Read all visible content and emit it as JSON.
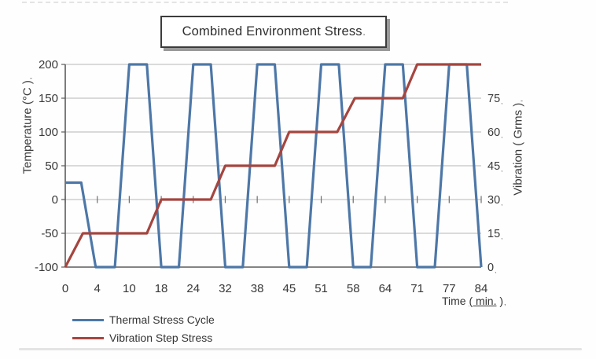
{
  "title": {
    "text": "Combined Environment Stress",
    "mark": ","
  },
  "axes": {
    "left": {
      "title": "Temperature (°C )",
      "mark": ",",
      "ticks": [
        "200",
        "150",
        "100",
        "50",
        "0",
        "-50",
        "-100"
      ]
    },
    "right": {
      "title": "Vibration ( Grms )",
      "mark": ",",
      "ticks": [
        "75",
        "60",
        "45",
        "30",
        "15",
        "0"
      ]
    },
    "bottom": {
      "title_prefix": "Time ",
      "title_underlined": "( min.",
      "title_suffix": " )",
      "mark": ",",
      "ticks": [
        "0",
        "4",
        "10",
        "18",
        "24",
        "32",
        "38",
        "45",
        "51",
        "58",
        "64",
        "71",
        "77",
        "84"
      ]
    }
  },
  "legend": [
    {
      "label": "Thermal Stress Cycle",
      "color": "#4d77a7"
    },
    {
      "label": "Vibration Step Stress",
      "color": "#a5453f"
    }
  ],
  "colors": {
    "grid": "#b5b5b5",
    "axis": "#5c5c5c",
    "tick_cross": "#6f6f6f",
    "text": "#383838"
  },
  "chart_data": {
    "type": "line",
    "title": "Combined Environment Stress",
    "x_axis": {
      "label": "Time ( min. )",
      "tick_labels": [
        0,
        4,
        10,
        18,
        24,
        32,
        38,
        45,
        51,
        58,
        64,
        71,
        77,
        84
      ],
      "note": "14 ticks evenly spaced; series x values below are in tick-index units 0-13"
    },
    "y_left": {
      "label": "Temperature (°C )",
      "range": [
        -100,
        200
      ],
      "tick_step": 50
    },
    "y_right": {
      "label": "Vibration ( Grms )",
      "range": [
        0,
        90
      ],
      "tick_step": 15,
      "highest_shown_label": 75
    },
    "grid": true,
    "legend_position": "bottom-left",
    "series": [
      {
        "name": "Thermal Stress Cycle",
        "axis": "left",
        "color": "#4d77a7",
        "points": [
          [
            0,
            25
          ],
          [
            0.5,
            25
          ],
          [
            0.95,
            -100
          ],
          [
            1.55,
            -100
          ],
          [
            2,
            200
          ],
          [
            2.55,
            200
          ],
          [
            3,
            -100
          ],
          [
            3.55,
            -100
          ],
          [
            4,
            200
          ],
          [
            4.55,
            200
          ],
          [
            5,
            -100
          ],
          [
            5.55,
            -100
          ],
          [
            6,
            200
          ],
          [
            6.55,
            200
          ],
          [
            7,
            -100
          ],
          [
            7.55,
            -100
          ],
          [
            8,
            200
          ],
          [
            8.55,
            200
          ],
          [
            9,
            -100
          ],
          [
            9.55,
            -100
          ],
          [
            10,
            200
          ],
          [
            10.55,
            200
          ],
          [
            11,
            -100
          ],
          [
            11.55,
            -100
          ],
          [
            12,
            200
          ],
          [
            12.55,
            200
          ],
          [
            13,
            -100
          ]
        ]
      },
      {
        "name": "Vibration Step Stress",
        "axis": "right",
        "color": "#a5453f",
        "points": [
          [
            0,
            0
          ],
          [
            0.55,
            15
          ],
          [
            2.55,
            15
          ],
          [
            3,
            30
          ],
          [
            4.55,
            30
          ],
          [
            5,
            45
          ],
          [
            6.55,
            45
          ],
          [
            7,
            60
          ],
          [
            8.5,
            60
          ],
          [
            9.05,
            75
          ],
          [
            10.55,
            75
          ],
          [
            11,
            90
          ],
          [
            13,
            90
          ]
        ]
      }
    ]
  }
}
